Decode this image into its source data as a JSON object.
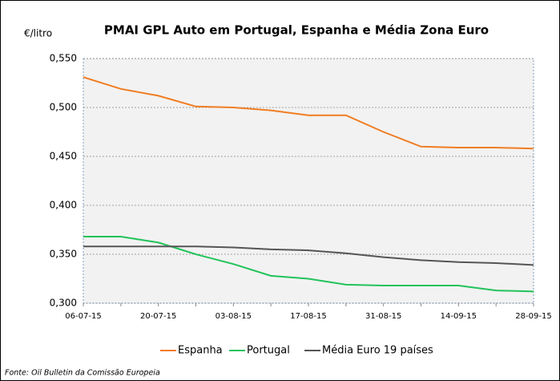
{
  "chart_data": {
    "type": "line",
    "title": "PMAI GPL Auto em Portugal, Espanha e Média Zona Euro",
    "y_label": "€/litro",
    "source": "Fonte: Oil Bulletin  da Comissão Europeia",
    "categories": [
      "06-07-15",
      null,
      "20-07-15",
      null,
      "03-08-15",
      null,
      "17-08-15",
      null,
      "31-08-15",
      null,
      "14-09-15",
      null,
      "28-09-15"
    ],
    "series": [
      {
        "name": "Espanha",
        "color": "#f07d22",
        "values": [
          0.531,
          0.519,
          0.512,
          0.501,
          0.5,
          0.497,
          0.492,
          0.492,
          0.475,
          0.46,
          0.459,
          0.459,
          0.458
        ]
      },
      {
        "name": "Portugal",
        "color": "#22c35a",
        "values": [
          0.368,
          0.368,
          0.362,
          0.35,
          0.34,
          0.328,
          0.325,
          0.319,
          0.318,
          0.318,
          0.318,
          0.313,
          0.312
        ]
      },
      {
        "name": "Média Euro 19 países",
        "color": "#555555",
        "values": [
          0.358,
          0.358,
          0.358,
          0.358,
          0.357,
          0.355,
          0.354,
          0.351,
          0.347,
          0.344,
          0.342,
          0.341,
          0.339
        ]
      }
    ],
    "ylim": [
      0.3,
      0.55
    ],
    "yticks": [
      {
        "value": 0.3,
        "label": "0,300"
      },
      {
        "value": 0.35,
        "label": "0,350"
      },
      {
        "value": 0.4,
        "label": "0,400"
      },
      {
        "value": 0.45,
        "label": "0,450"
      },
      {
        "value": 0.5,
        "label": "0,500"
      },
      {
        "value": 0.55,
        "label": "0,550"
      }
    ],
    "grid": true,
    "legend": "bottom"
  }
}
